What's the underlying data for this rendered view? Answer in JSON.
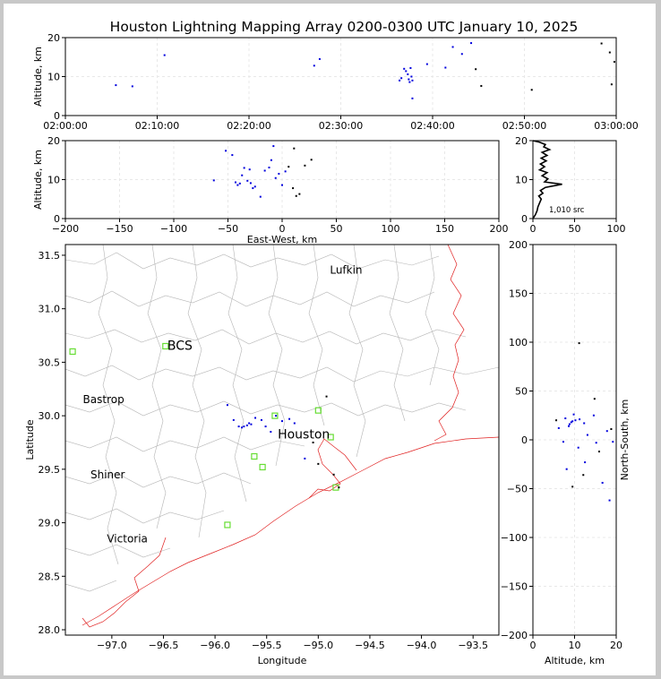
{
  "title": "Houston Lightning Mapping Array 0200-0300 UTC January 10, 2025",
  "colors": {
    "early": "#0000dd",
    "late": "#000000",
    "coast": "#e02020",
    "county": "#b4b4b4",
    "sensor": "#66dd33"
  },
  "chart_data": [
    {
      "id": "time-altitude",
      "type": "scatter",
      "xlabel": "",
      "ylabel": "Altitude, km",
      "x_ticks": [
        "02:00:00",
        "02:10:00",
        "02:20:00",
        "02:30:00",
        "02:40:00",
        "02:50:00",
        "03:00:00"
      ],
      "xlim_minutes": [
        0,
        60
      ],
      "ylim": [
        0,
        20
      ],
      "y_ticks": [
        0,
        10,
        20
      ],
      "points": [
        [
          5.5,
          7.8
        ],
        [
          7.3,
          7.5
        ],
        [
          10.8,
          15.5
        ],
        [
          27.1,
          12.8
        ],
        [
          27.7,
          14.5
        ],
        [
          36.4,
          9.0
        ],
        [
          36.6,
          9.6
        ],
        [
          36.9,
          12.0
        ],
        [
          37.1,
          11.4
        ],
        [
          37.3,
          10.6
        ],
        [
          37.4,
          9.3
        ],
        [
          37.5,
          8.6
        ],
        [
          37.6,
          12.2
        ],
        [
          37.7,
          10.0
        ],
        [
          37.8,
          9.0
        ],
        [
          37.8,
          4.4
        ],
        [
          39.4,
          13.2
        ],
        [
          41.4,
          12.3
        ],
        [
          42.2,
          17.6
        ],
        [
          43.2,
          15.8
        ],
        [
          44.2,
          18.6
        ],
        [
          44.7,
          11.9
        ],
        [
          45.3,
          7.6
        ],
        [
          50.8,
          6.6
        ],
        [
          58.4,
          18.5
        ],
        [
          59.3,
          16.2
        ],
        [
          59.5,
          8.0
        ],
        [
          59.8,
          13.8
        ]
      ]
    },
    {
      "id": "east-west-altitude",
      "type": "scatter",
      "xlabel": "East-West, km",
      "ylabel": "Altitude, km",
      "xlim": [
        -200,
        200
      ],
      "x_ticks": [
        -200,
        -150,
        -100,
        -50,
        0,
        50,
        100,
        150,
        200
      ],
      "ylim": [
        0,
        20
      ],
      "y_ticks": [
        0,
        10,
        20
      ],
      "points": [
        [
          -63,
          9.8
        ],
        [
          -52,
          17.4
        ],
        [
          -46,
          16.3
        ],
        [
          -43,
          9.3
        ],
        [
          -41,
          8.6
        ],
        [
          -39,
          9.0
        ],
        [
          -37,
          11.1
        ],
        [
          -35,
          13.0
        ],
        [
          -32,
          9.7
        ],
        [
          -30,
          12.6
        ],
        [
          -29,
          9.1
        ],
        [
          -27,
          7.8
        ],
        [
          -25,
          8.2
        ],
        [
          -20,
          5.6
        ],
        [
          -16,
          12.3
        ],
        [
          -12,
          13.1
        ],
        [
          -10,
          15.0
        ],
        [
          -8,
          18.6
        ],
        [
          -6,
          10.4
        ],
        [
          -3,
          11.5
        ],
        [
          0,
          8.6
        ],
        [
          3,
          12.1
        ],
        [
          6,
          13.3
        ],
        [
          10,
          7.8
        ],
        [
          11,
          18.0
        ],
        [
          13,
          5.8
        ],
        [
          16,
          6.3
        ],
        [
          21,
          13.6
        ],
        [
          27,
          15.1
        ]
      ]
    },
    {
      "id": "altitude-histogram",
      "type": "line",
      "xlabel": "",
      "ylabel": "",
      "annotation": "1,010 src",
      "xlim": [
        0,
        100
      ],
      "x_ticks": [
        0,
        50,
        100
      ],
      "ylim": [
        0,
        20
      ],
      "y_ticks": [
        0,
        10,
        20
      ],
      "profile": [
        [
          0,
          0
        ],
        [
          3,
          1
        ],
        [
          5,
          2
        ],
        [
          6,
          3
        ],
        [
          8,
          4
        ],
        [
          10,
          5
        ],
        [
          7,
          5.8
        ],
        [
          12,
          6.5
        ],
        [
          9,
          7.2
        ],
        [
          15,
          8
        ],
        [
          35,
          8.8
        ],
        [
          14,
          9.4
        ],
        [
          18,
          10.2
        ],
        [
          11,
          11
        ],
        [
          17,
          11.8
        ],
        [
          8,
          12.5
        ],
        [
          14,
          13.3
        ],
        [
          9,
          14
        ],
        [
          16,
          14.8
        ],
        [
          10,
          15.5
        ],
        [
          17,
          16.2
        ],
        [
          11,
          17
        ],
        [
          20,
          17.7
        ],
        [
          13,
          18.4
        ],
        [
          15,
          19
        ],
        [
          8,
          19.6
        ],
        [
          0,
          20
        ]
      ]
    },
    {
      "id": "plan-view",
      "type": "scatter",
      "xlabel": "Longitude",
      "ylabel": "Latitude",
      "xlim": [
        -97.45,
        -93.25
      ],
      "x_ticks": [
        -97.0,
        -96.5,
        -96.0,
        -95.5,
        -95.0,
        -94.5,
        -94.0,
        -93.5
      ],
      "x_tick_labels": [
        "−97.0",
        "−96.5",
        "−96.0",
        "−95.5",
        "−95.0",
        "−94.5",
        "−94.0",
        "−93.5"
      ],
      "ylim": [
        27.95,
        31.6
      ],
      "y_ticks": [
        28.0,
        28.5,
        29.0,
        29.5,
        30.0,
        30.5,
        31.0,
        31.5
      ],
      "points": [
        [
          -95.88,
          30.1
        ],
        [
          -95.82,
          29.96
        ],
        [
          -95.77,
          29.9
        ],
        [
          -95.74,
          29.89
        ],
        [
          -95.72,
          29.9
        ],
        [
          -95.69,
          29.91
        ],
        [
          -95.67,
          29.93
        ],
        [
          -95.65,
          29.92
        ],
        [
          -95.61,
          29.98
        ],
        [
          -95.55,
          29.96
        ],
        [
          -95.51,
          29.9
        ],
        [
          -95.46,
          29.85
        ],
        [
          -95.41,
          30.0
        ],
        [
          -95.35,
          29.95
        ],
        [
          -95.28,
          29.97
        ],
        [
          -95.23,
          29.93
        ],
        [
          -95.13,
          29.6
        ],
        [
          -95.05,
          29.75
        ],
        [
          -95.0,
          29.55
        ],
        [
          -94.92,
          30.18
        ],
        [
          -94.85,
          29.45
        ],
        [
          -94.8,
          29.33
        ]
      ],
      "sensors": [
        [
          -97.38,
          30.6
        ],
        [
          -96.48,
          30.65
        ],
        [
          -95.42,
          30.0
        ],
        [
          -95.0,
          30.05
        ],
        [
          -94.88,
          29.8
        ],
        [
          -94.83,
          29.33
        ],
        [
          -95.62,
          29.62
        ],
        [
          -95.54,
          29.52
        ],
        [
          -95.88,
          28.98
        ]
      ],
      "cities": [
        {
          "name": "Lufkin",
          "lon": -94.73,
          "lat": 31.36,
          "color": "#000000",
          "size": 12
        },
        {
          "name": "BCS",
          "lon": -96.34,
          "lat": 30.65,
          "color": "#3c0000",
          "size": 14
        },
        {
          "name": "Bastrop",
          "lon": -97.08,
          "lat": 30.15,
          "color": "#000000",
          "size": 12
        },
        {
          "name": "Houston",
          "lon": -95.14,
          "lat": 29.82,
          "color": "#ff9900",
          "size": 14
        },
        {
          "name": "Shiner",
          "lon": -97.04,
          "lat": 29.45,
          "color": "#000000",
          "size": 12
        },
        {
          "name": "Victoria",
          "lon": -96.85,
          "lat": 28.85,
          "color": "#000000",
          "size": 12
        }
      ]
    },
    {
      "id": "north-south-altitude",
      "type": "scatter",
      "xlabel": "Altitude, km",
      "ylabel": "North-South, km",
      "xlim": [
        0,
        20
      ],
      "x_ticks": [
        0,
        10,
        20
      ],
      "ylim": [
        -200,
        200
      ],
      "y_ticks": [
        -200,
        -150,
        -100,
        -50,
        0,
        50,
        100,
        150,
        200
      ],
      "points": [
        [
          9.2,
          18
        ],
        [
          8.8,
          16
        ],
        [
          9.5,
          19
        ],
        [
          10.2,
          20
        ],
        [
          8.6,
          14
        ],
        [
          12.3,
          17
        ],
        [
          11.2,
          21
        ],
        [
          14.6,
          25
        ],
        [
          7.8,
          22
        ],
        [
          6.2,
          12
        ],
        [
          9.8,
          26
        ],
        [
          13.1,
          5
        ],
        [
          17.8,
          9
        ],
        [
          7.3,
          -2
        ],
        [
          10.9,
          -8
        ],
        [
          8.1,
          -30
        ],
        [
          12.5,
          -23
        ],
        [
          15.2,
          -3
        ],
        [
          19.2,
          -2
        ],
        [
          16.7,
          -44
        ],
        [
          18.4,
          -62
        ],
        [
          11.1,
          99
        ],
        [
          14.8,
          42
        ],
        [
          9.5,
          -48
        ],
        [
          5.6,
          20
        ],
        [
          18.8,
          11
        ],
        [
          15.9,
          -12
        ],
        [
          12.1,
          -36
        ]
      ]
    }
  ]
}
